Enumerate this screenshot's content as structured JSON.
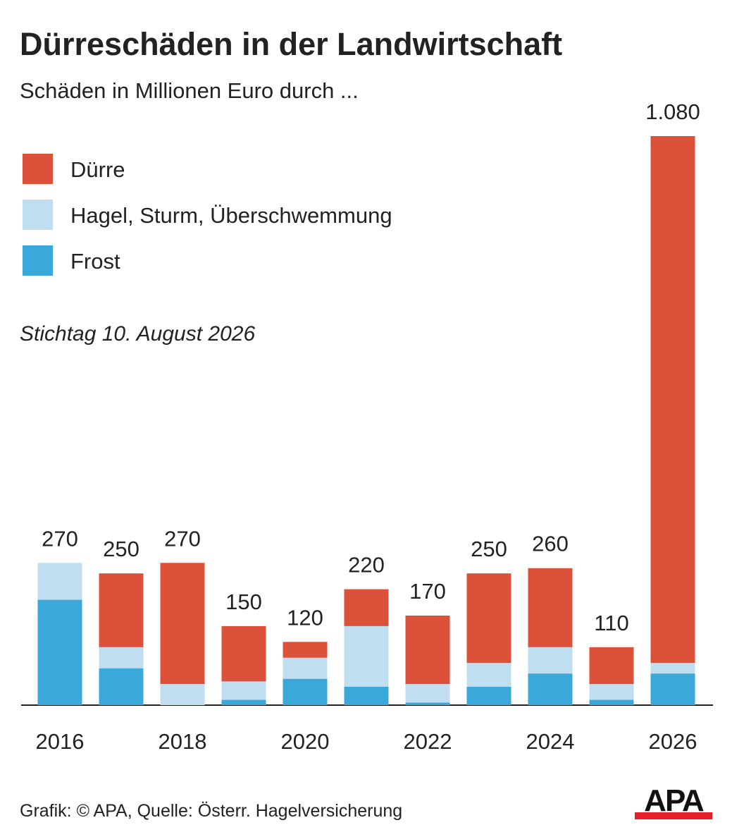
{
  "chart_data": {
    "type": "stacked-bar",
    "title": "Dürreschäden in der Landwirtschaft",
    "subtitle": "Schäden in Millionen Euro durch ...",
    "annotation": "Stichtag 10. August 2026",
    "source": "Grafik: © APA, Quelle: Österr. Hagelversicherung",
    "logo": "APA",
    "categories": [
      "2016",
      null,
      "2018",
      null,
      "2020",
      null,
      "2022",
      null,
      "2024",
      null,
      "2026"
    ],
    "series": [
      {
        "name": "Frost",
        "color": "#3aa8d8",
        "values": [
          200,
          70,
          0,
          10,
          50,
          35,
          5,
          35,
          60,
          10,
          60
        ]
      },
      {
        "name": "Hagel, Sturm, Überschwemmung",
        "color": "#c0def0",
        "values": [
          70,
          40,
          40,
          35,
          40,
          115,
          35,
          45,
          50,
          30,
          20
        ]
      },
      {
        "name": "Dürre",
        "color": "#dc5139",
        "values": [
          0,
          140,
          230,
          105,
          30,
          70,
          130,
          170,
          150,
          70,
          1000
        ]
      }
    ],
    "totals": {
      "values": [
        270,
        250,
        270,
        150,
        120,
        220,
        170,
        250,
        260,
        110,
        1080
      ],
      "value_labels": [
        "270",
        "250",
        "270",
        "150",
        "120",
        "220",
        "170",
        "250",
        "260",
        "110",
        "1.080"
      ]
    }
  }
}
